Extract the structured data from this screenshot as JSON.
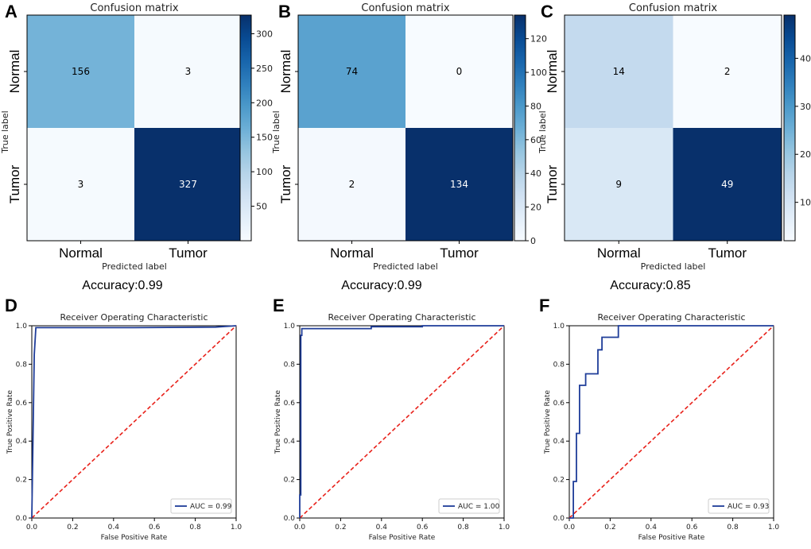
{
  "chart_data": [
    {
      "panel": "A",
      "type": "heatmap",
      "title": "Confusion matrix",
      "xlabel": "Predicted label",
      "ylabel": "True label",
      "categories": [
        "Normal",
        "Tumor"
      ],
      "matrix": [
        [
          156,
          3
        ],
        [
          3,
          327
        ]
      ],
      "colorbar_ticks": [
        50,
        100,
        150,
        200,
        250,
        300
      ],
      "vmin": 0,
      "vmax": 327,
      "caption": "Accuracy:0.99"
    },
    {
      "panel": "B",
      "type": "heatmap",
      "title": "Confusion matrix",
      "xlabel": "Predicted label",
      "ylabel": "True label",
      "categories": [
        "Normal",
        "Tumor"
      ],
      "matrix": [
        [
          74,
          0
        ],
        [
          2,
          134
        ]
      ],
      "colorbar_ticks": [
        0,
        20,
        40,
        60,
        80,
        100,
        120
      ],
      "vmin": 0,
      "vmax": 134,
      "caption": "Accuracy:0.99"
    },
    {
      "panel": "C",
      "type": "heatmap",
      "title": "Confusion matrix",
      "xlabel": "Predicted label",
      "ylabel": "True label",
      "categories": [
        "Normal",
        "Tumor"
      ],
      "matrix": [
        [
          14,
          2
        ],
        [
          9,
          49
        ]
      ],
      "colorbar_ticks": [
        10,
        20,
        30,
        40
      ],
      "vmin": 2,
      "vmax": 49,
      "caption": "Accuracy:0.85"
    },
    {
      "panel": "D",
      "type": "line",
      "title": "Receiver Operating Characteristic",
      "xlabel": "False Positive Rate",
      "ylabel": "True Positive Rate",
      "xlim": [
        0,
        1
      ],
      "ylim": [
        0,
        1
      ],
      "ticks": [
        0.0,
        0.2,
        0.4,
        0.6,
        0.8,
        1.0
      ],
      "tick_labels": [
        "0.0",
        "0.2",
        "0.4",
        "0.6",
        "0.8",
        "1.0"
      ],
      "legend": "AUC = 0.99",
      "legend_loc": "lower-right",
      "roc": [
        [
          0,
          0
        ],
        [
          0.012,
          0.85
        ],
        [
          0.02,
          0.99
        ],
        [
          0.5,
          0.99
        ],
        [
          0.9,
          0.993
        ],
        [
          1,
          1
        ]
      ],
      "chance": [
        [
          0,
          0
        ],
        [
          1,
          1
        ]
      ]
    },
    {
      "panel": "E",
      "type": "line",
      "title": "Receiver Operating Characteristic",
      "xlabel": "False Positive Rate",
      "ylabel": "True Positive Rate",
      "xlim": [
        0,
        1
      ],
      "ylim": [
        0,
        1
      ],
      "ticks": [
        0.0,
        0.2,
        0.4,
        0.6,
        0.8,
        1.0
      ],
      "tick_labels": [
        "0.0",
        "0.2",
        "0.4",
        "0.6",
        "0.8",
        "1.0"
      ],
      "legend": "AUC = 1.00",
      "legend_loc": "lower-right",
      "roc": [
        [
          0,
          0
        ],
        [
          0,
          0.12
        ],
        [
          0.005,
          0.12
        ],
        [
          0.005,
          0.95
        ],
        [
          0.01,
          0.95
        ],
        [
          0.01,
          0.985
        ],
        [
          0.35,
          0.985
        ],
        [
          0.35,
          0.995
        ],
        [
          0.6,
          0.995
        ],
        [
          0.6,
          1
        ],
        [
          1,
          1
        ]
      ],
      "chance": [
        [
          0,
          0
        ],
        [
          1,
          1
        ]
      ]
    },
    {
      "panel": "F",
      "type": "line",
      "title": "Receiver Operating Characteristic",
      "xlabel": "False Positive Rate",
      "ylabel": "True Positive Rate",
      "xlim": [
        0,
        1
      ],
      "ylim": [
        0,
        1
      ],
      "ticks": [
        0.0,
        0.2,
        0.4,
        0.6,
        0.8,
        1.0
      ],
      "tick_labels": [
        "0.0",
        "0.2",
        "0.4",
        "0.6",
        "0.8",
        "1.0"
      ],
      "legend": "AUC = 0.93",
      "legend_loc": "lower-right",
      "roc": [
        [
          0,
          0
        ],
        [
          0.02,
          0
        ],
        [
          0.02,
          0.19
        ],
        [
          0.035,
          0.19
        ],
        [
          0.035,
          0.44
        ],
        [
          0.05,
          0.44
        ],
        [
          0.05,
          0.69
        ],
        [
          0.08,
          0.69
        ],
        [
          0.08,
          0.75
        ],
        [
          0.14,
          0.75
        ],
        [
          0.14,
          0.875
        ],
        [
          0.16,
          0.875
        ],
        [
          0.16,
          0.94
        ],
        [
          0.24,
          0.94
        ],
        [
          0.24,
          1
        ],
        [
          1,
          1
        ]
      ],
      "chance": [
        [
          0,
          0
        ],
        [
          1,
          1
        ]
      ]
    }
  ],
  "colors": {
    "roc_line": "#1f3d99",
    "chance_line": "#e8211a",
    "cmap": [
      "#f7fbff",
      "#deebf7",
      "#c6dbef",
      "#9ecae1",
      "#6baed6",
      "#4292c6",
      "#2171b5",
      "#08519c",
      "#08306b"
    ]
  }
}
